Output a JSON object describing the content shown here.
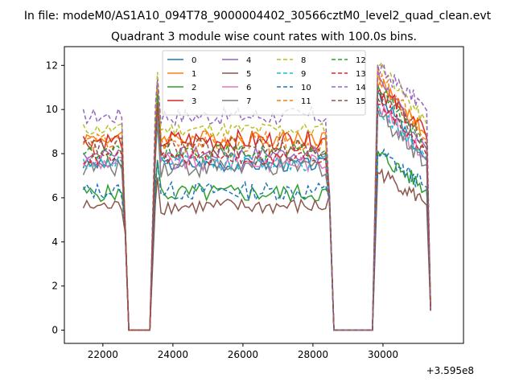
{
  "header": {
    "file_line": "In file: modeM0/AS1A10_094T78_9000004402_30566cztM0_level2_quad_clean.evt",
    "title": "Quadrant 3 module wise count rates with 100.0s bins."
  },
  "chart_data": {
    "type": "line",
    "title": "Quadrant 3 module wise count rates with 100.0s bins.",
    "xlabel": "",
    "ylabel": "",
    "x_offset_label": "+3.595e8",
    "xlim": [
      20900,
      32300
    ],
    "ylim": [
      -0.6,
      12.85
    ],
    "xticks": [
      22000,
      24000,
      26000,
      28000,
      30000
    ],
    "xtick_labels": [
      "22000",
      "24000",
      "26000",
      "28000",
      "30000"
    ],
    "yticks": [
      0,
      2,
      4,
      6,
      8,
      10,
      12
    ],
    "ytick_labels": [
      "0",
      "2",
      "4",
      "6",
      "8",
      "10",
      "12"
    ],
    "grid": false,
    "legend_position": "top-center",
    "legend_columns": 4,
    "segments": [
      {
        "start": 21440,
        "end": 22540,
        "type": "on"
      },
      {
        "start": 22540,
        "end": 22640,
        "type": "drop"
      },
      {
        "start": 22740,
        "end": 23400,
        "type": "zero"
      },
      {
        "start": 23500,
        "end": 28380,
        "type": "on"
      },
      {
        "start": 28440,
        "end": 28500,
        "type": "drop"
      },
      {
        "start": 28600,
        "end": 29740,
        "type": "zero"
      },
      {
        "start": 29850,
        "end": 31140,
        "type": "on"
      },
      {
        "start": 31220,
        "end": 31290,
        "type": "drop"
      },
      {
        "start": 31360,
        "end": 31360,
        "type": "end"
      }
    ],
    "series": [
      {
        "name": "0",
        "color": "#1f77b4",
        "dash": "solid",
        "base": 7.5,
        "peak3": 10.8
      },
      {
        "name": "1",
        "color": "#ff7f0e",
        "dash": "solid",
        "base": 8.7,
        "peak3": 11.3
      },
      {
        "name": "2",
        "color": "#2ca02c",
        "dash": "solid",
        "base": 6.2,
        "peak3": 8.0
      },
      {
        "name": "3",
        "color": "#d62728",
        "dash": "solid",
        "base": 8.6,
        "peak3": 11.0
      },
      {
        "name": "4",
        "color": "#9467bd",
        "dash": "solid",
        "base": 8.0,
        "peak3": 11.6
      },
      {
        "name": "5",
        "color": "#8c564b",
        "dash": "solid",
        "base": 5.6,
        "peak3": 7.2
      },
      {
        "name": "6",
        "color": "#e377c2",
        "dash": "solid",
        "base": 7.6,
        "peak3": 10.2
      },
      {
        "name": "7",
        "color": "#7f7f7f",
        "dash": "solid",
        "base": 7.4,
        "peak3": 9.9
      },
      {
        "name": "8",
        "color": "#bcbd22",
        "dash": "dashed",
        "base": 9.1,
        "peak3": 12.2
      },
      {
        "name": "9",
        "color": "#17becf",
        "dash": "dashed",
        "base": 7.6,
        "peak3": 10.1
      },
      {
        "name": "10",
        "color": "#1f77b4",
        "dash": "dashed",
        "base": 6.3,
        "peak3": 8.1
      },
      {
        "name": "11",
        "color": "#ff7f0e",
        "dash": "dashed",
        "base": 8.5,
        "peak3": 11.5
      },
      {
        "name": "12",
        "color": "#2ca02c",
        "dash": "dashed",
        "base": 8.1,
        "peak3": 11.1
      },
      {
        "name": "13",
        "color": "#d62728",
        "dash": "dashed",
        "base": 7.8,
        "peak3": 10.5
      },
      {
        "name": "14",
        "color": "#9467bd",
        "dash": "dashed",
        "base": 9.7,
        "peak3": 11.9
      },
      {
        "name": "15",
        "color": "#8c564b",
        "dash": "dashed",
        "base": 8.3,
        "peak3": 10.7
      }
    ]
  }
}
